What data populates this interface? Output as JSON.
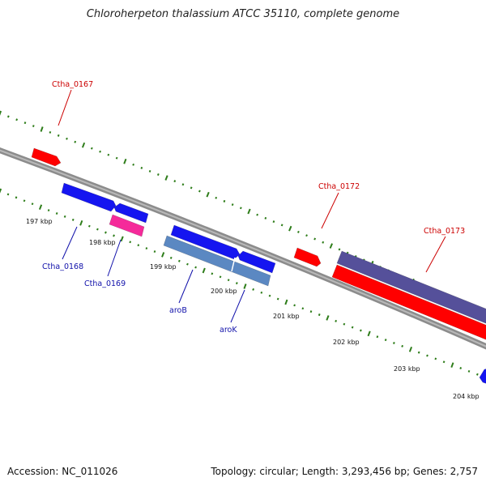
{
  "title": "Chloroherpeton thalassium ATCC 35110, complete genome",
  "footer": {
    "accession": "Accession: NC_011026",
    "summary": "Topology: circular; Length: 3,293,456 bp; Genes: 2,757"
  },
  "colors": {
    "backbone": "#8c8c8c",
    "tick": "#2e7d1a",
    "red_gene": "#ff0000",
    "blue_gene": "#1515f0",
    "magenta_gene": "#f52a9a",
    "steel_gene": "#5b88c2",
    "slate_gene": "#55509a",
    "red_label": "#cc0000",
    "blue_label": "#1010aa"
  },
  "scale_labels": [
    "197 kbp",
    "198 kbp",
    "199 kbp",
    "200 kbp",
    "201 kbp",
    "202 kbp",
    "203 kbp",
    "204 kbp"
  ],
  "gene_labels": {
    "ctha_0167": "Ctha_0167",
    "ctha_0168": "Ctha_0168",
    "ctha_0169": "Ctha_0169",
    "ctha_0172": "Ctha_0172",
    "ctha_0173": "Ctha_0173",
    "aroB": "aroB",
    "aroK": "aroK"
  }
}
